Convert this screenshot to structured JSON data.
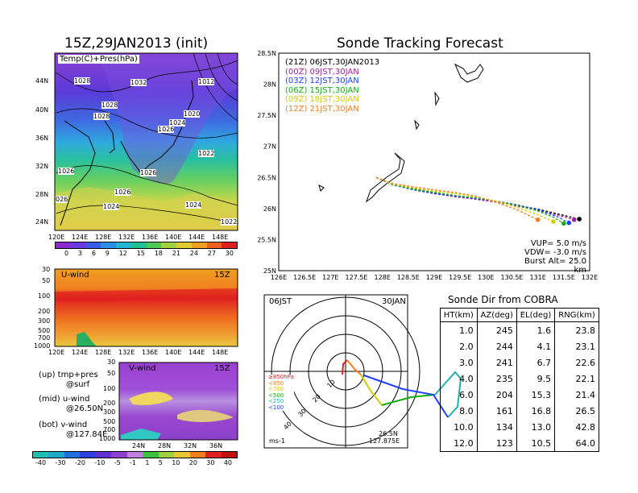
{
  "left_title": "15Z,29JAN2013 (init)",
  "tracking_title": "Sonde Tracking Forecast",
  "temp_map": {
    "label": "Temp(C)+Pres(hPa)",
    "lat_labels": [
      "44N",
      "40N",
      "36N",
      "32N",
      "28N",
      "24N"
    ],
    "lon_labels": [
      "120E",
      "124E",
      "128E",
      "132E",
      "136E",
      "140E",
      "144E",
      "148E"
    ],
    "pressure_labels": [
      "1028",
      "1032",
      "1012",
      "1028",
      "1028",
      "1020",
      "1024",
      "1026",
      "1022",
      "1026",
      "1026",
      "1026",
      "1024",
      "1024",
      "026",
      "1022"
    ],
    "colorbar_ticks": [
      "0",
      "3",
      "6",
      "9",
      "12",
      "15",
      "18",
      "21",
      "24",
      "27",
      "30"
    ]
  },
  "uwind": {
    "label": "U-wind",
    "time": "15Z",
    "p_labels": [
      "30",
      "50",
      "100",
      "200",
      "300",
      "500",
      "700",
      "1000"
    ],
    "lon_labels": [
      "120E",
      "124E",
      "128E",
      "132E",
      "136E",
      "140E",
      "144E",
      "148E"
    ]
  },
  "vwind": {
    "label": "V-wind",
    "time": "15Z",
    "p_labels": [
      "30",
      "50",
      "100",
      "200",
      "300",
      "500",
      "700",
      "1000"
    ],
    "lat_labels": [
      "24N",
      "28N",
      "32N",
      "36N"
    ],
    "colorbar_ticks": [
      "-40",
      "-30",
      "-20",
      "-10",
      "-5",
      "-1",
      "1",
      "5",
      "10",
      "20",
      "30",
      "40"
    ]
  },
  "notes": [
    {
      "line1": "(up) tmp+pres",
      "line2": "@surf"
    },
    {
      "line1": "(mid) u-wind",
      "line2": "@26.50N"
    },
    {
      "line1": "(bot) v-wind",
      "line2": "@127.84E"
    }
  ],
  "legend": [
    {
      "label": "(21Z) 06JST,30JAN2013",
      "color": "#000000"
    },
    {
      "label": "(00Z) 09JST,30JAN",
      "color": "#a020a0"
    },
    {
      "label": "(03Z) 12JST,30JAN",
      "color": "#2040ff"
    },
    {
      "label": "(06Z) 15JST,30JAN",
      "color": "#10b010"
    },
    {
      "label": "(09Z) 18JST,30JAN",
      "color": "#d8c800"
    },
    {
      "label": "(12Z) 21JST,30JAN",
      "color": "#f08020"
    }
  ],
  "params": {
    "vup": "VUP= 5.0 m/s",
    "vdw": "VDW= -3.0 m/s",
    "burst": "Burst Alt= 25.0 km"
  },
  "chart_data": [
    {
      "type": "line",
      "title": "Sonde Tracking Forecast",
      "xlim": [
        126,
        132
      ],
      "ylim": [
        25,
        28.5
      ],
      "x_ticks": [
        "126E",
        "126.5E",
        "127E",
        "127.5E",
        "128E",
        "128.5E",
        "129E",
        "129.5E",
        "130E",
        "130.5E",
        "131E",
        "131.5E",
        "132E"
      ],
      "y_ticks": [
        "25N",
        "25.5N",
        "26N",
        "26.5N",
        "27N",
        "27.5N",
        "28N",
        "28.5N"
      ],
      "series": [
        {
          "name": "(21Z) 06JST,30JAN2013",
          "color": "#000000",
          "x": [
            127.88,
            128.2,
            128.6,
            129.0,
            129.4,
            129.8,
            130.2,
            130.6,
            131.0,
            131.4,
            131.8
          ],
          "y": [
            26.5,
            26.4,
            26.32,
            26.25,
            26.2,
            26.16,
            26.12,
            26.05,
            25.99,
            25.91,
            25.83
          ]
        },
        {
          "name": "(00Z) 09JST,30JAN",
          "color": "#a020a0",
          "x": [
            127.88,
            128.2,
            128.6,
            129.0,
            129.4,
            129.8,
            130.2,
            130.6,
            131.0,
            131.4,
            131.7
          ],
          "y": [
            26.5,
            26.39,
            26.31,
            26.24,
            26.19,
            26.15,
            26.1,
            26.04,
            25.97,
            25.89,
            25.82
          ]
        },
        {
          "name": "(03Z) 12JST,30JAN",
          "color": "#2040ff",
          "x": [
            127.88,
            128.2,
            128.6,
            129.0,
            129.4,
            129.8,
            130.2,
            130.6,
            131.0,
            131.4,
            131.6
          ],
          "y": [
            26.5,
            26.38,
            26.3,
            26.24,
            26.2,
            26.16,
            26.12,
            26.06,
            25.98,
            25.86,
            25.77
          ]
        },
        {
          "name": "(06Z) 15JST,30JAN",
          "color": "#10b010",
          "x": [
            127.88,
            128.2,
            128.6,
            129.0,
            129.4,
            129.8,
            130.2,
            130.6,
            131.0,
            131.3,
            131.5
          ],
          "y": [
            26.5,
            26.38,
            26.31,
            26.26,
            26.21,
            26.17,
            26.12,
            26.05,
            25.96,
            25.86,
            25.76
          ]
        },
        {
          "name": "(09Z) 18JST,30JAN",
          "color": "#d8c800",
          "x": [
            127.88,
            128.2,
            128.6,
            129.0,
            129.4,
            129.8,
            130.2,
            130.6,
            131.0,
            131.3
          ],
          "y": [
            26.5,
            26.39,
            26.33,
            26.28,
            26.24,
            26.19,
            26.12,
            26.02,
            25.9,
            25.79
          ]
        },
        {
          "name": "(12Z) 21JST,30JAN",
          "color": "#f08020",
          "x": [
            127.88,
            128.2,
            128.6,
            129.0,
            129.4,
            129.8,
            130.2,
            130.6,
            131.0
          ],
          "y": [
            26.5,
            26.4,
            26.35,
            26.3,
            26.26,
            26.2,
            26.1,
            25.98,
            25.82
          ]
        }
      ]
    },
    {
      "type": "table",
      "title": "Sonde Dir from COBRA",
      "columns": [
        "HT(km)",
        "AZ(deg)",
        "EL(deg)",
        "RNG(km)"
      ],
      "rows": [
        [
          "1.0",
          "245",
          "1.6",
          "23.8"
        ],
        [
          "2.0",
          "244",
          "4.1",
          "23.1"
        ],
        [
          "3.0",
          "241",
          "6.7",
          "22.6"
        ],
        [
          "4.0",
          "235",
          "9.5",
          "22.1"
        ],
        [
          "6.0",
          "204",
          "15.3",
          "21.4"
        ],
        [
          "8.0",
          "161",
          "16.8",
          "26.5"
        ],
        [
          "10.0",
          "134",
          "13.0",
          "42.8"
        ],
        [
          "12.0",
          "123",
          "10.5",
          "64.0"
        ]
      ]
    }
  ],
  "polar": {
    "time": "06JST",
    "date": "30JAN",
    "ring_labels": [
      "10",
      "20",
      "30",
      "40"
    ],
    "unit": "ms-1",
    "loc1": "26.5N",
    "loc2": "127.875E",
    "levels": [
      {
        "label": "≥850hPa",
        "color": "#e02020"
      },
      {
        "label": "<850",
        "color": "#f08020"
      },
      {
        "label": "<700",
        "color": "#d8c800"
      },
      {
        "label": "<500",
        "color": "#10b010"
      },
      {
        "label": "<250",
        "color": "#20b0b0"
      },
      {
        "label": "<100",
        "color": "#2040ff"
      }
    ]
  }
}
